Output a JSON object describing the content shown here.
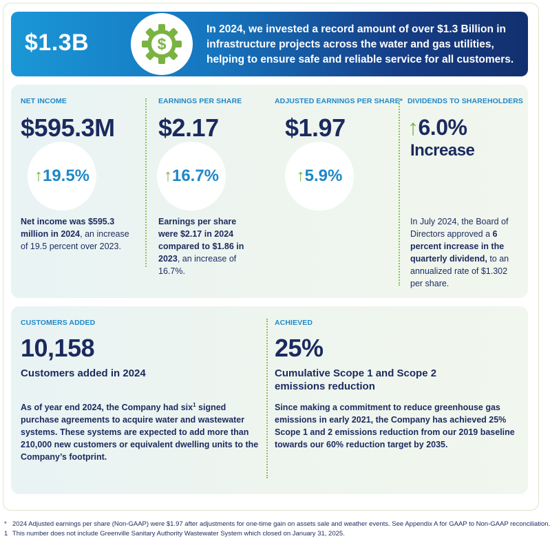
{
  "banner": {
    "amount": "$1.3B",
    "icon": "dollar-gear-icon",
    "text": "In 2024, we invested a record amount of over $1.3 Billion in infrastructure projects across the water and gas utilities, helping to ensure safe and reliable service for all customers."
  },
  "metrics": [
    {
      "kicker": "NET INCOME",
      "value": "$595.3M",
      "change": "19.5%",
      "desc_bold": "Net income was $595.3 million in 2024",
      "desc_rest": ", an increase of 19.5 percent over 2023."
    },
    {
      "kicker": "EARNINGS PER SHARE",
      "value": "$2.17",
      "change": "16.7%",
      "desc_bold": "Earnings per share were $2.17 in 2024 compared to $1.86 in 2023",
      "desc_rest": ", an increase of 16.7%."
    },
    {
      "kicker": "ADJUSTED EARNINGS PER SHARE*",
      "value": "$1.97",
      "change": "5.9%"
    },
    {
      "kicker": "DIVIDENDS TO SHAREHOLDERS",
      "value": "6.0%",
      "value_sub": "Increase",
      "desc_pre": "In July 2024, the Board of Directors approved a ",
      "desc_bold": "6 percent increase in the quarterly dividend,",
      "desc_rest": " to an annualized rate of $1.302 per share."
    }
  ],
  "customers": {
    "kicker": "CUSTOMERS ADDED",
    "value": "10,158",
    "subtitle": "Customers added in 2024",
    "para_a": "As of year end 2024, the Company had six",
    "para_sup": "1",
    "para_b": " signed purchase agreements to acquire water and wastewater systems. These systems are expected to add more than 210,000 new customers or equivalent dwelling units to the Company’s footprint."
  },
  "achieved": {
    "kicker": "ACHIEVED",
    "value": "25%",
    "subtitle": "Cumulative Scope 1 and Scope 2 emissions reduction",
    "para": "Since making a commitment to reduce greenhouse gas emissions in early 2021, the Company has achieved 25% Scope 1 and 2 emissions reduction from our 2019 baseline towards our 60% reduction target by 2035."
  },
  "footnotes": [
    {
      "mark": "*",
      "text": "2024 Adjusted earnings per share (Non-GAAP) were $1.97 after adjustments for one-time gain on assets sale and weather events. See Appendix A for GAAP to Non-GAAP reconciliation."
    },
    {
      "mark": "1",
      "text": "This number does not include Greenville Sanitary Authority Wastewater System which closed on January 31, 2025."
    }
  ],
  "colors": {
    "accent": "#1e88c8",
    "navy": "#1b2a5e",
    "green": "#7ab342"
  }
}
